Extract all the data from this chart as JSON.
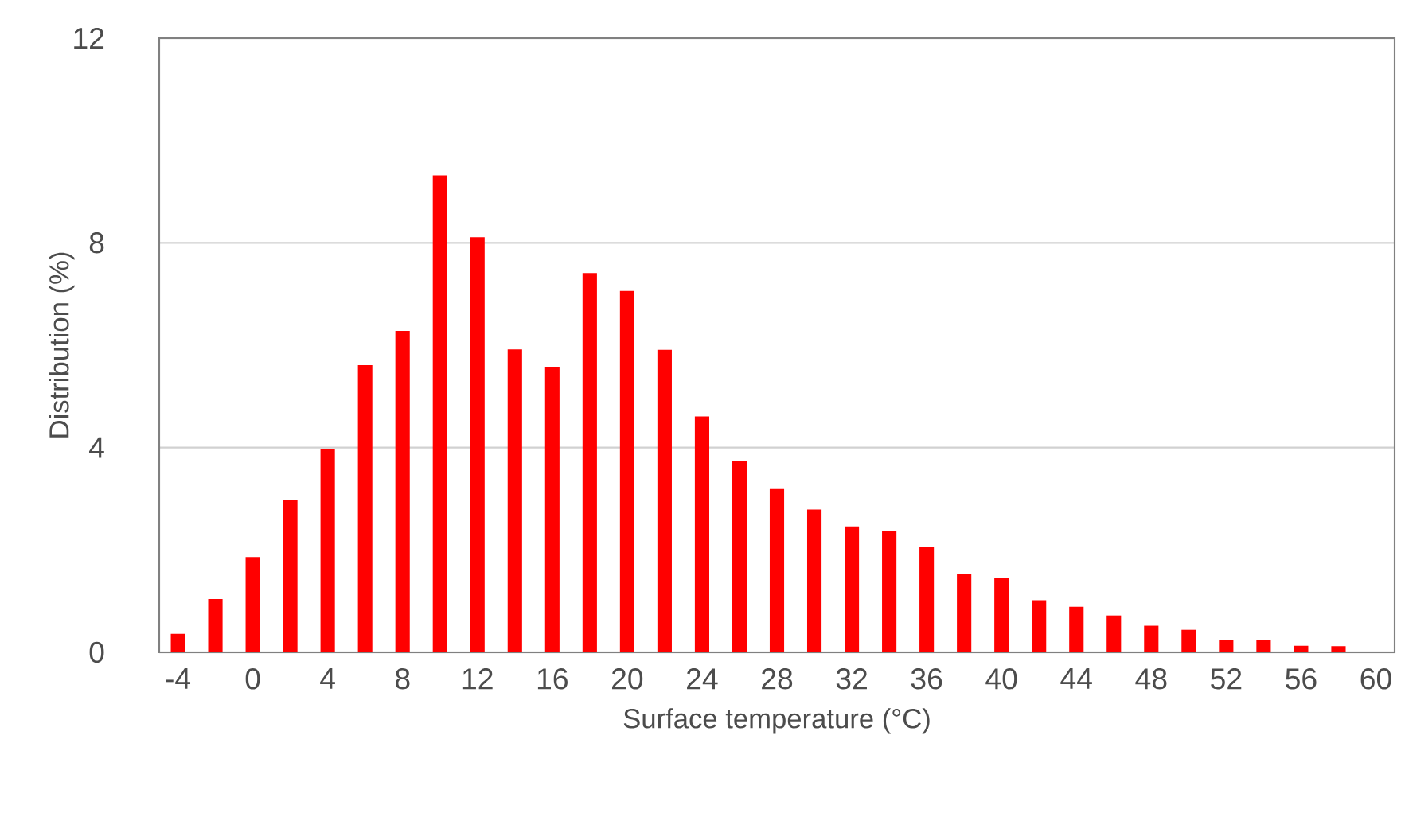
{
  "chart_data": {
    "type": "bar",
    "xlabel": "Surface temperature (°C)",
    "ylabel": "Distribution (%)",
    "x": [
      -4,
      -2,
      0,
      2,
      4,
      6,
      8,
      10,
      12,
      14,
      16,
      18,
      20,
      22,
      24,
      26,
      28,
      30,
      32,
      34,
      36,
      38,
      40,
      42,
      44,
      46,
      48,
      50,
      52,
      54,
      56,
      58
    ],
    "values": [
      0.36,
      1.04,
      1.86,
      2.98,
      3.97,
      5.61,
      6.28,
      9.32,
      8.11,
      5.92,
      5.58,
      7.41,
      7.06,
      5.91,
      4.61,
      3.74,
      3.19,
      2.79,
      2.46,
      2.38,
      2.06,
      1.53,
      1.45,
      1.02,
      0.89,
      0.72,
      0.52,
      0.44,
      0.25,
      0.25,
      0.13,
      0.12
    ],
    "color": "#ff0000",
    "xlim": [
      -5,
      61
    ],
    "xticks": [
      -4,
      0,
      4,
      8,
      12,
      16,
      20,
      24,
      28,
      32,
      36,
      40,
      44,
      48,
      52,
      56,
      60
    ],
    "ylim": [
      0,
      12
    ],
    "yticks": [
      0,
      4,
      8,
      12
    ],
    "grid": "y"
  }
}
